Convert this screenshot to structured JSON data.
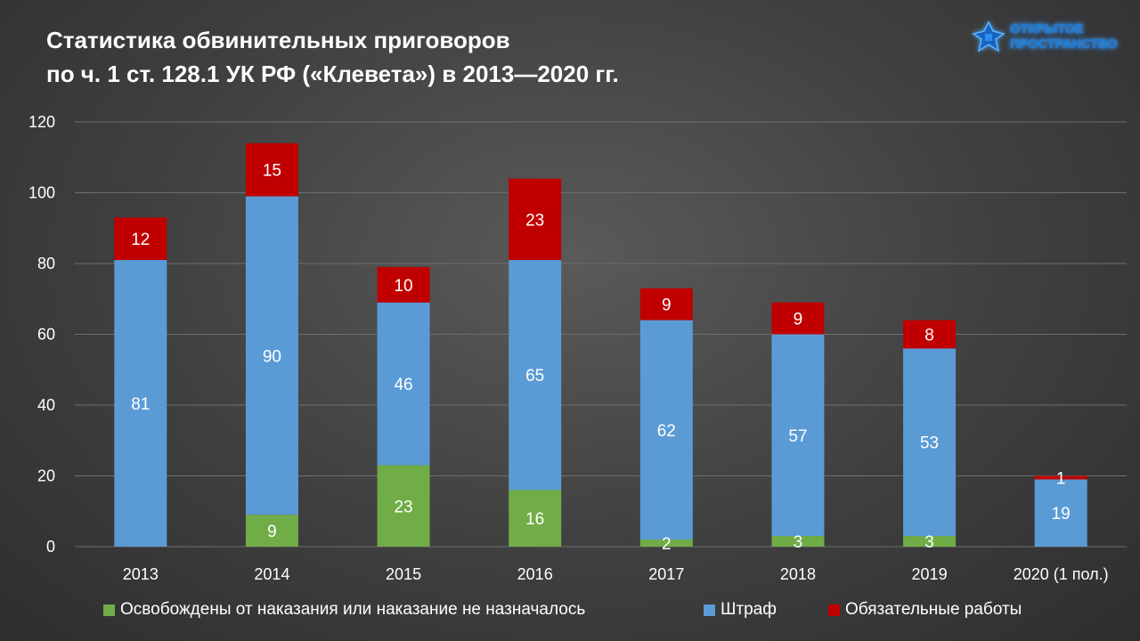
{
  "title": {
    "line1": "Статистика обвинительных приговоров",
    "line2": "по ч. 1 ст. 128.1 УК РФ («Клевета») в 2013—2020 гг."
  },
  "logo": {
    "line1": "ОТКРЫТОЕ",
    "line2": "ПРОСТРАНСТВО",
    "icon": "cross-star-icon"
  },
  "chart_data": {
    "type": "bar",
    "stacked": true,
    "title": "Статистика обвинительных приговоров по ч. 1 ст. 128.1 УК РФ («Клевета») в 2013—2020 гг.",
    "categories": [
      "2013",
      "2014",
      "2015",
      "2016",
      "2017",
      "2018",
      "2019",
      "2020 (1 пол.)"
    ],
    "series": [
      {
        "name": "Освобождены от наказания или наказание не назначалось",
        "color": "#70ad47",
        "values": [
          0,
          9,
          23,
          16,
          2,
          3,
          3,
          0
        ]
      },
      {
        "name": "Штраф",
        "color": "#5b9bd5",
        "values": [
          81,
          90,
          46,
          65,
          62,
          57,
          53,
          19
        ]
      },
      {
        "name": "Обязательные работы",
        "color": "#c00000",
        "values": [
          12,
          15,
          10,
          23,
          9,
          9,
          8,
          1
        ]
      }
    ],
    "ylim": [
      0,
      120
    ],
    "yticks": [
      0,
      20,
      40,
      60,
      80,
      100,
      120
    ],
    "grid": true,
    "legend_position": "bottom",
    "xlabel": "",
    "ylabel": ""
  }
}
